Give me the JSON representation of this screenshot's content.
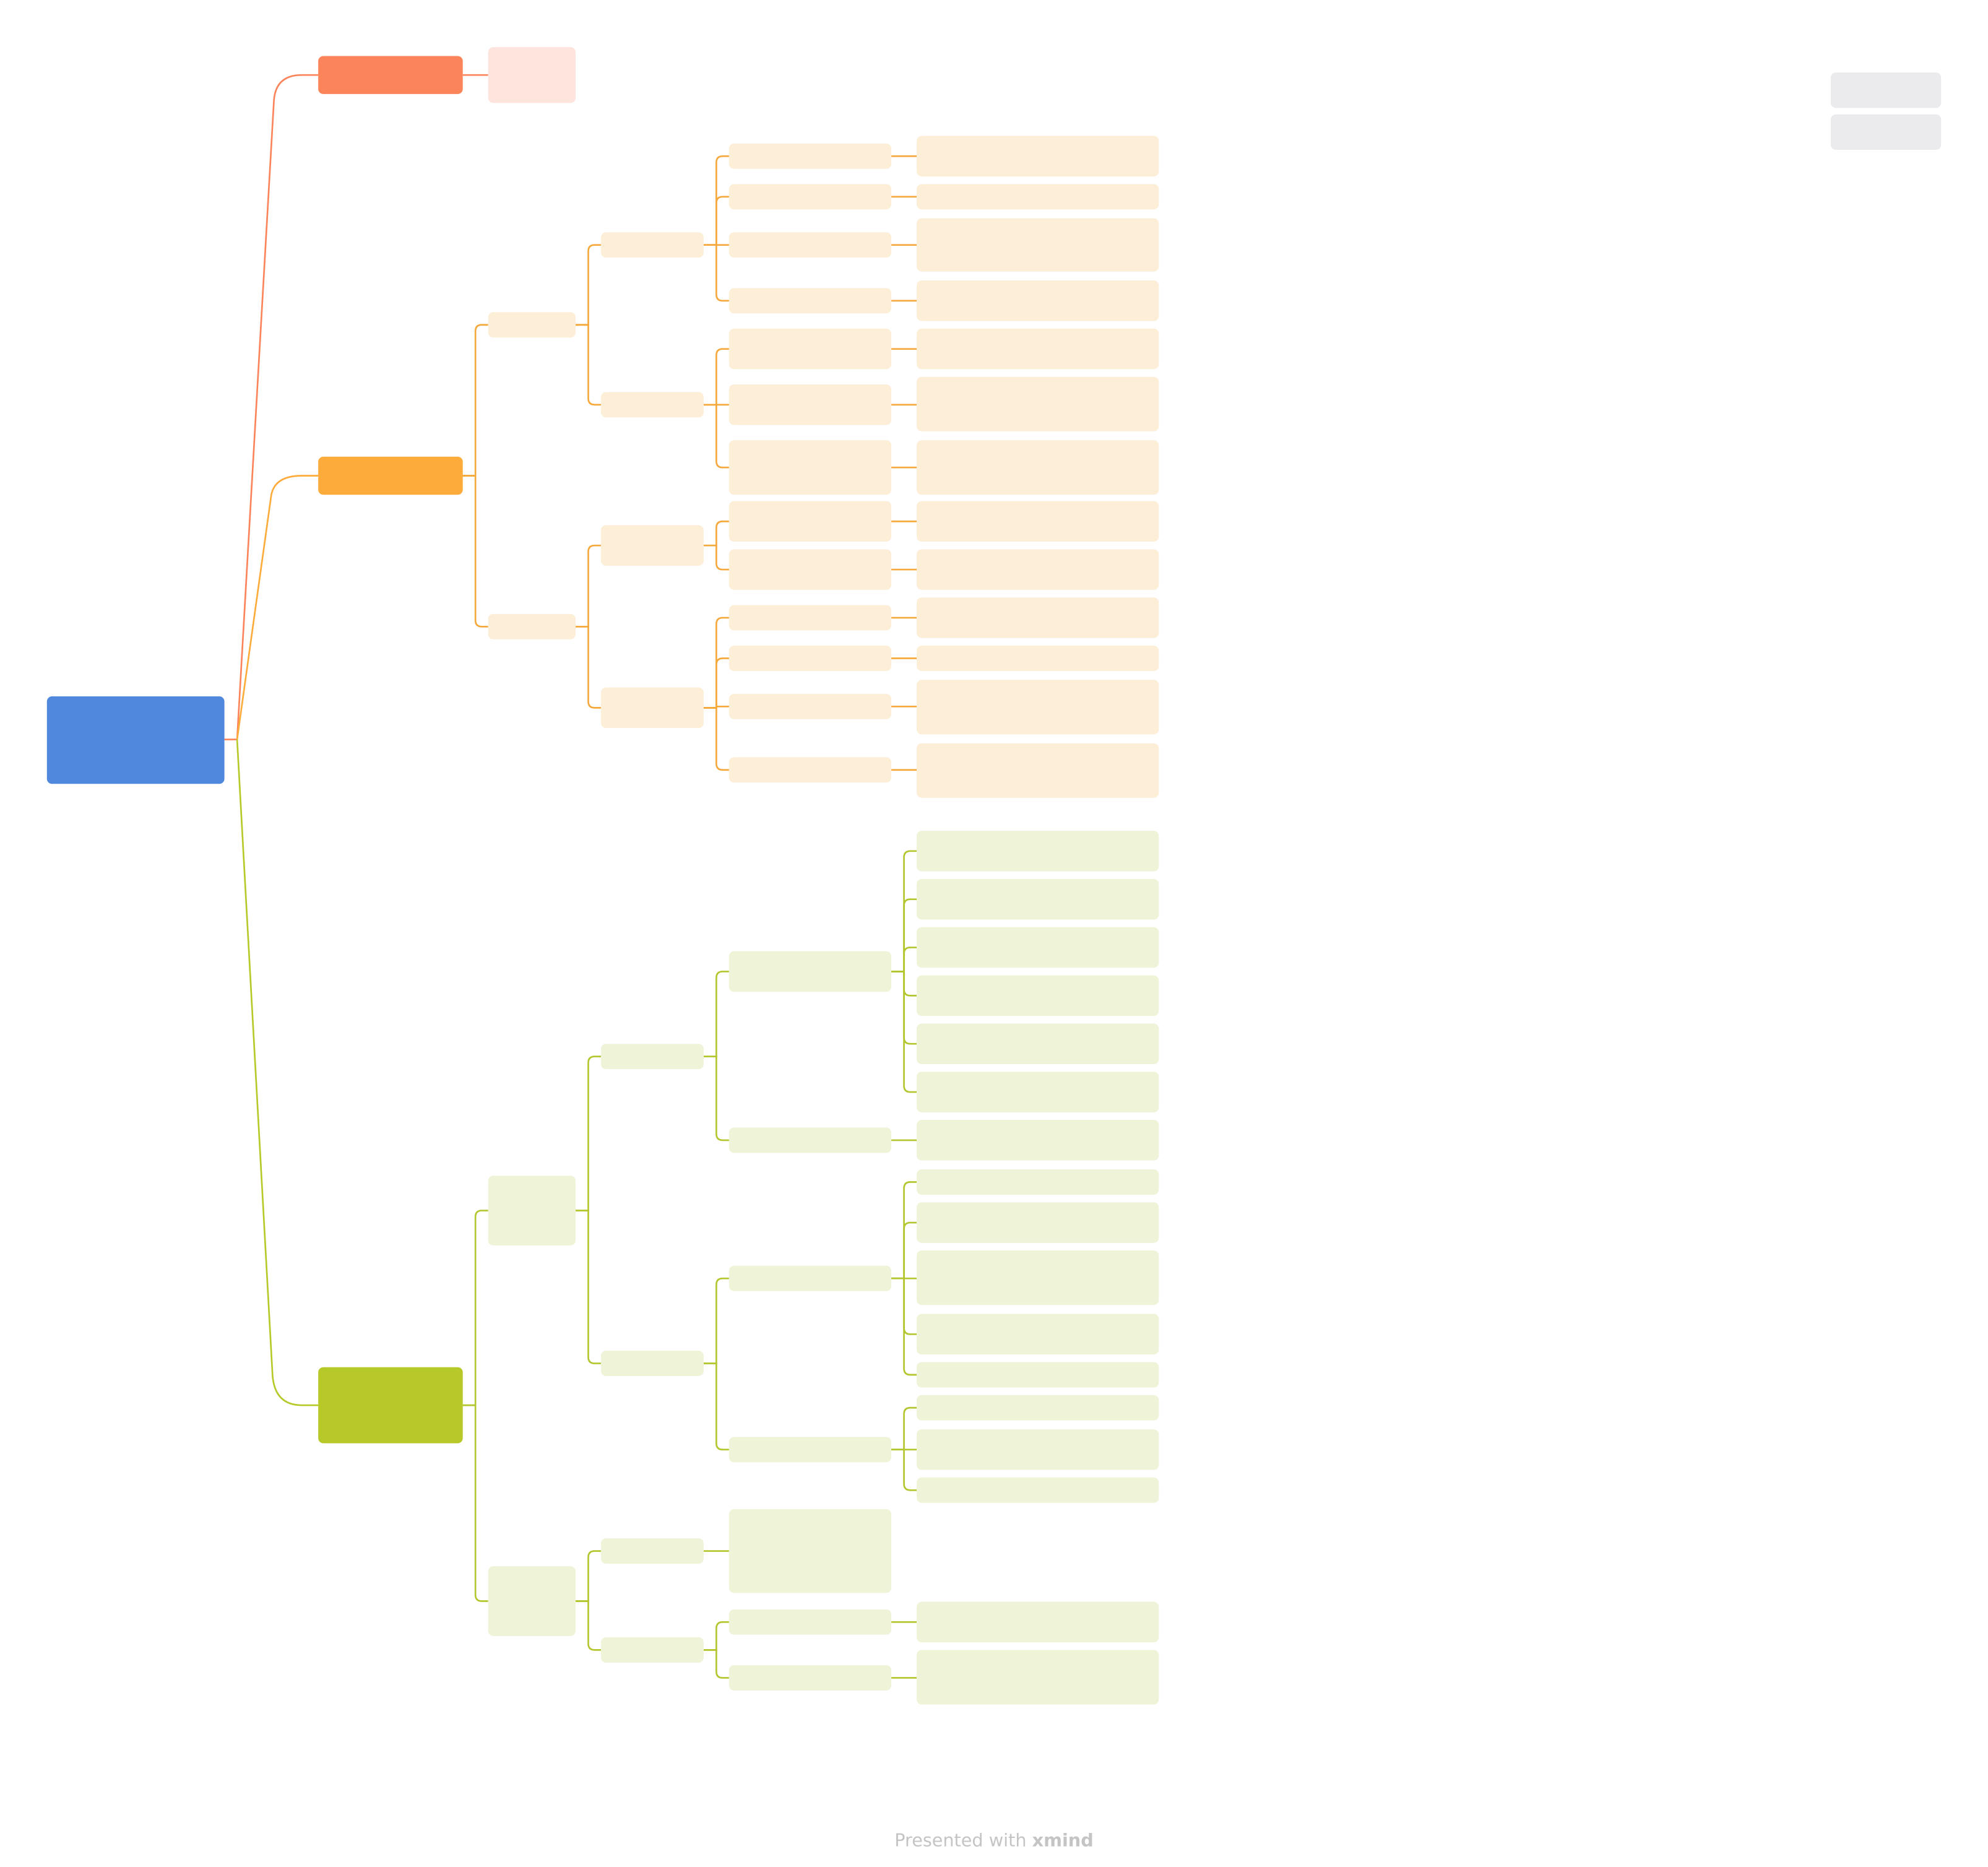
{
  "footer": {
    "prefix": "Presented with",
    "brand": "xmind"
  }
}
